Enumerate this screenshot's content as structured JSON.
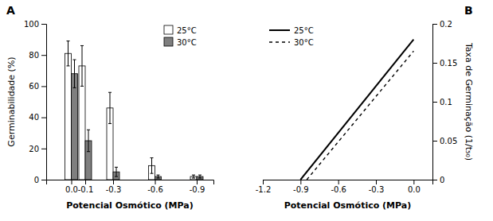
{
  "chart_data": [
    {
      "type": "bar",
      "title": "A",
      "x_label": "Potencial Osmótico (MPa)",
      "y_label": "Germinabilidade (%)",
      "x": [
        0.0,
        -0.1,
        -0.3,
        -0.6,
        -0.9
      ],
      "series": [
        {
          "name": "25°C",
          "color": "#ffffff",
          "values": [
            81,
            73,
            46,
            9,
            2
          ],
          "errors": [
            8,
            13,
            10,
            5,
            1
          ]
        },
        {
          "name": "30°C",
          "color": "#7f7f7f",
          "values": [
            68,
            25,
            5,
            2,
            2
          ],
          "errors": [
            9,
            7,
            3,
            1,
            1
          ]
        }
      ],
      "xlim": [
        0.18,
        -1.02
      ],
      "ylim": [
        0,
        100
      ],
      "xticks": [
        {
          "value": 0.0,
          "label": "0.0"
        },
        -0.1,
        -0.3,
        -0.6,
        -0.9
      ],
      "yticks": [
        0,
        20,
        40,
        60,
        80,
        100
      ],
      "legend": "upper right",
      "grid": false
    },
    {
      "type": "line",
      "title": "B",
      "x_label": "Potencial Osmótico (MPa)",
      "y_label": "Taxa de Germinação (1/t₅₀)",
      "series": [
        {
          "name": "25°C",
          "color": "#000000",
          "line_style": "solid",
          "x": [
            -0.9,
            0.0
          ],
          "values": [
            0.0,
            0.18
          ]
        },
        {
          "name": "30°C",
          "color": "#000000",
          "line_style": "dashed",
          "x": [
            -0.85,
            0.0
          ],
          "values": [
            0.0,
            0.165
          ]
        }
      ],
      "xlim": [
        -1.2,
        0.15
      ],
      "ylim": [
        0,
        0.2
      ],
      "xticks": [
        -1.2,
        -0.9,
        -0.6,
        -0.3,
        {
          "value": 0.0,
          "label": "0.0"
        }
      ],
      "yticks": [
        0,
        0.05,
        0.1,
        0.15,
        0.2
      ],
      "legend": "upper left",
      "grid": false
    }
  ]
}
